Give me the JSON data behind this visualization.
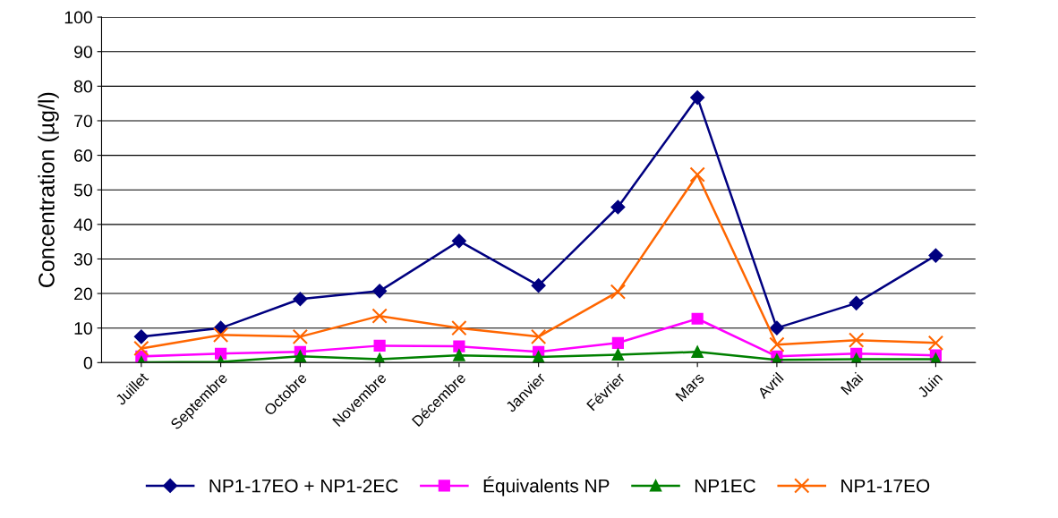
{
  "chart_data": {
    "type": "line",
    "ylabel": "Concentration (µg/l)",
    "categories": [
      "Juillet",
      "Septembre",
      "Octobre",
      "Novembre",
      "Décembre",
      "Janvier",
      "Février",
      "Mars",
      "Avril",
      "Mai",
      "Juin"
    ],
    "series": [
      {
        "name": "NP1-17EO + NP1-2EC",
        "color": "#000080",
        "marker": "diamond",
        "values": [
          7.5,
          10,
          18.4,
          20.7,
          35.2,
          22.3,
          45,
          76.7,
          10,
          17.2,
          31
        ]
      },
      {
        "name": "Équivalents NP",
        "color": "#ff00ff",
        "marker": "square",
        "values": [
          1.8,
          2.6,
          3.1,
          4.9,
          4.7,
          3.1,
          5.7,
          12.7,
          1.8,
          2.6,
          2.1
        ]
      },
      {
        "name": "NP1EC",
        "color": "#008000",
        "marker": "triangle",
        "values": [
          0.1,
          0.2,
          1.8,
          1.0,
          2.1,
          1.6,
          2.3,
          3.1,
          0.8,
          1.0,
          1.0
        ]
      },
      {
        "name": "NP1-17EO",
        "color": "#ff6600",
        "marker": "cross",
        "values": [
          4.1,
          8,
          7.5,
          13.5,
          10,
          7.5,
          20.5,
          54.4,
          5.2,
          6.5,
          5.7
        ]
      }
    ],
    "ylim": [
      0,
      100
    ],
    "yticks": [
      0,
      10,
      20,
      30,
      40,
      50,
      60,
      70,
      80,
      90,
      100
    ],
    "grid": "y",
    "legend": "bottom"
  }
}
